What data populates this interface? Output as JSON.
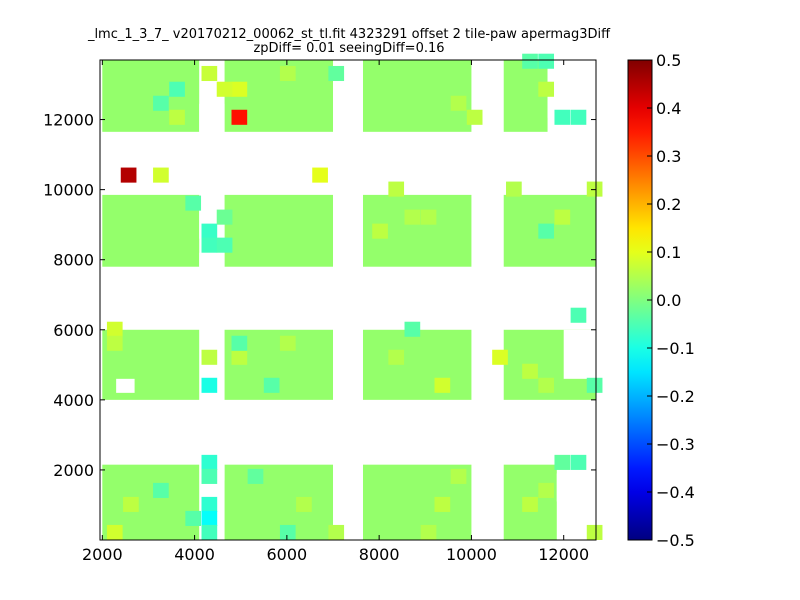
{
  "chart_data": {
    "type": "heatmap",
    "title": "_lmc_1_3_7_ v20170212_00062_st_tl.fit 4323291 offset 2 tile-paw apermag3Diff",
    "subtitle": "zpDiff= 0.01 seeingDiff=0.16",
    "xlabel": "",
    "ylabel": "",
    "xlim": [
      1950,
      12700
    ],
    "ylim": [
      0,
      13700
    ],
    "x_ticks": [
      "2000",
      "4000",
      "6000",
      "8000",
      "10000",
      "12000"
    ],
    "y_ticks": [
      "2000",
      "4000",
      "6000",
      "8000",
      "10000",
      "12000"
    ],
    "colorbar": {
      "colormap": "jet",
      "range": [
        -0.5,
        0.5
      ],
      "ticks": [
        "0.5",
        "0.4",
        "0.3",
        "0.2",
        "0.1",
        "0.0",
        "−0.1",
        "−0.2",
        "−0.3",
        "−0.4",
        "−0.5"
      ]
    },
    "cell_size": [
      340,
      430
    ],
    "cells": [
      {
        "x": 2400,
        "y": 10200,
        "value": 0.45
      },
      {
        "x": 3100,
        "y": 10200,
        "value": 0.08
      },
      {
        "x": 6550,
        "y": 10200,
        "value": 0.1
      },
      {
        "x": 4800,
        "y": 11850,
        "value": 0.36
      },
      {
        "x": 4150,
        "y": 13100,
        "value": 0.07
      },
      {
        "x": 4800,
        "y": 12650,
        "value": 0.09
      },
      {
        "x": 4480,
        "y": 12650,
        "value": 0.08
      },
      {
        "x": 11800,
        "y": 11850,
        "value": -0.06
      },
      {
        "x": 12150,
        "y": 11850,
        "value": -0.06
      },
      {
        "x": 3450,
        "y": 11850,
        "value": 0.06
      },
      {
        "x": 3100,
        "y": 12250,
        "value": -0.04
      },
      {
        "x": 3450,
        "y": 12650,
        "value": -0.05
      },
      {
        "x": 5850,
        "y": 13100,
        "value": 0.05
      },
      {
        "x": 6900,
        "y": 13100,
        "value": -0.03
      },
      {
        "x": 9550,
        "y": 12250,
        "value": 0.05
      },
      {
        "x": 9900,
        "y": 11850,
        "value": 0.06
      },
      {
        "x": 11100,
        "y": 13450,
        "value": -0.04
      },
      {
        "x": 11450,
        "y": 13450,
        "value": -0.05
      },
      {
        "x": 11450,
        "y": 12650,
        "value": 0.06
      },
      {
        "x": 4150,
        "y": 8600,
        "value": -0.07
      },
      {
        "x": 4150,
        "y": 8200,
        "value": -0.06
      },
      {
        "x": 3800,
        "y": 9400,
        "value": -0.04
      },
      {
        "x": 4480,
        "y": 8200,
        "value": -0.05
      },
      {
        "x": 4480,
        "y": 9000,
        "value": -0.02
      },
      {
        "x": 8200,
        "y": 9800,
        "value": 0.06
      },
      {
        "x": 8550,
        "y": 9000,
        "value": 0.05
      },
      {
        "x": 8900,
        "y": 9000,
        "value": 0.05
      },
      {
        "x": 7850,
        "y": 8600,
        "value": 0.06
      },
      {
        "x": 10750,
        "y": 9800,
        "value": 0.05
      },
      {
        "x": 11800,
        "y": 9000,
        "value": 0.06
      },
      {
        "x": 12500,
        "y": 9800,
        "value": 0.06
      },
      {
        "x": 11450,
        "y": 8600,
        "value": -0.04
      },
      {
        "x": 12150,
        "y": 6200,
        "value": -0.05
      },
      {
        "x": 2100,
        "y": 5800,
        "value": 0.08
      },
      {
        "x": 2100,
        "y": 5400,
        "value": 0.06
      },
      {
        "x": 4150,
        "y": 4200,
        "value": -0.1
      },
      {
        "x": 4150,
        "y": 5000,
        "value": 0.06
      },
      {
        "x": 4800,
        "y": 5000,
        "value": 0.06
      },
      {
        "x": 4800,
        "y": 5400,
        "value": -0.04
      },
      {
        "x": 5850,
        "y": 5400,
        "value": 0.05
      },
      {
        "x": 5500,
        "y": 4200,
        "value": -0.04
      },
      {
        "x": 9200,
        "y": 4200,
        "value": 0.08
      },
      {
        "x": 8200,
        "y": 5000,
        "value": 0.05
      },
      {
        "x": 8550,
        "y": 5800,
        "value": -0.04
      },
      {
        "x": 10450,
        "y": 5000,
        "value": 0.09
      },
      {
        "x": 11100,
        "y": 4600,
        "value": 0.06
      },
      {
        "x": 11450,
        "y": 4200,
        "value": 0.05
      },
      {
        "x": 12500,
        "y": 4200,
        "value": -0.04
      },
      {
        "x": 4150,
        "y": 2000,
        "value": -0.08
      },
      {
        "x": 4150,
        "y": 1600,
        "value": -0.05
      },
      {
        "x": 4150,
        "y": 800,
        "value": -0.08
      },
      {
        "x": 4150,
        "y": 400,
        "value": -0.12
      },
      {
        "x": 4150,
        "y": 0,
        "value": -0.06
      },
      {
        "x": 3800,
        "y": 400,
        "value": -0.04
      },
      {
        "x": 3100,
        "y": 1200,
        "value": -0.04
      },
      {
        "x": 2100,
        "y": 0,
        "value": 0.08
      },
      {
        "x": 2450,
        "y": 800,
        "value": 0.06
      },
      {
        "x": 5150,
        "y": 1600,
        "value": -0.03
      },
      {
        "x": 5850,
        "y": 0,
        "value": -0.04
      },
      {
        "x": 6200,
        "y": 800,
        "value": 0.05
      },
      {
        "x": 6900,
        "y": 0,
        "value": 0.05
      },
      {
        "x": 8900,
        "y": 0,
        "value": 0.05
      },
      {
        "x": 9200,
        "y": 800,
        "value": 0.06
      },
      {
        "x": 9550,
        "y": 1600,
        "value": 0.05
      },
      {
        "x": 11100,
        "y": 800,
        "value": 0.06
      },
      {
        "x": 11800,
        "y": 2000,
        "value": -0.03
      },
      {
        "x": 12150,
        "y": 2000,
        "value": -0.05
      },
      {
        "x": 12500,
        "y": 0,
        "value": 0.06
      },
      {
        "x": 11450,
        "y": 1200,
        "value": 0.05
      }
    ],
    "grid": false
  }
}
